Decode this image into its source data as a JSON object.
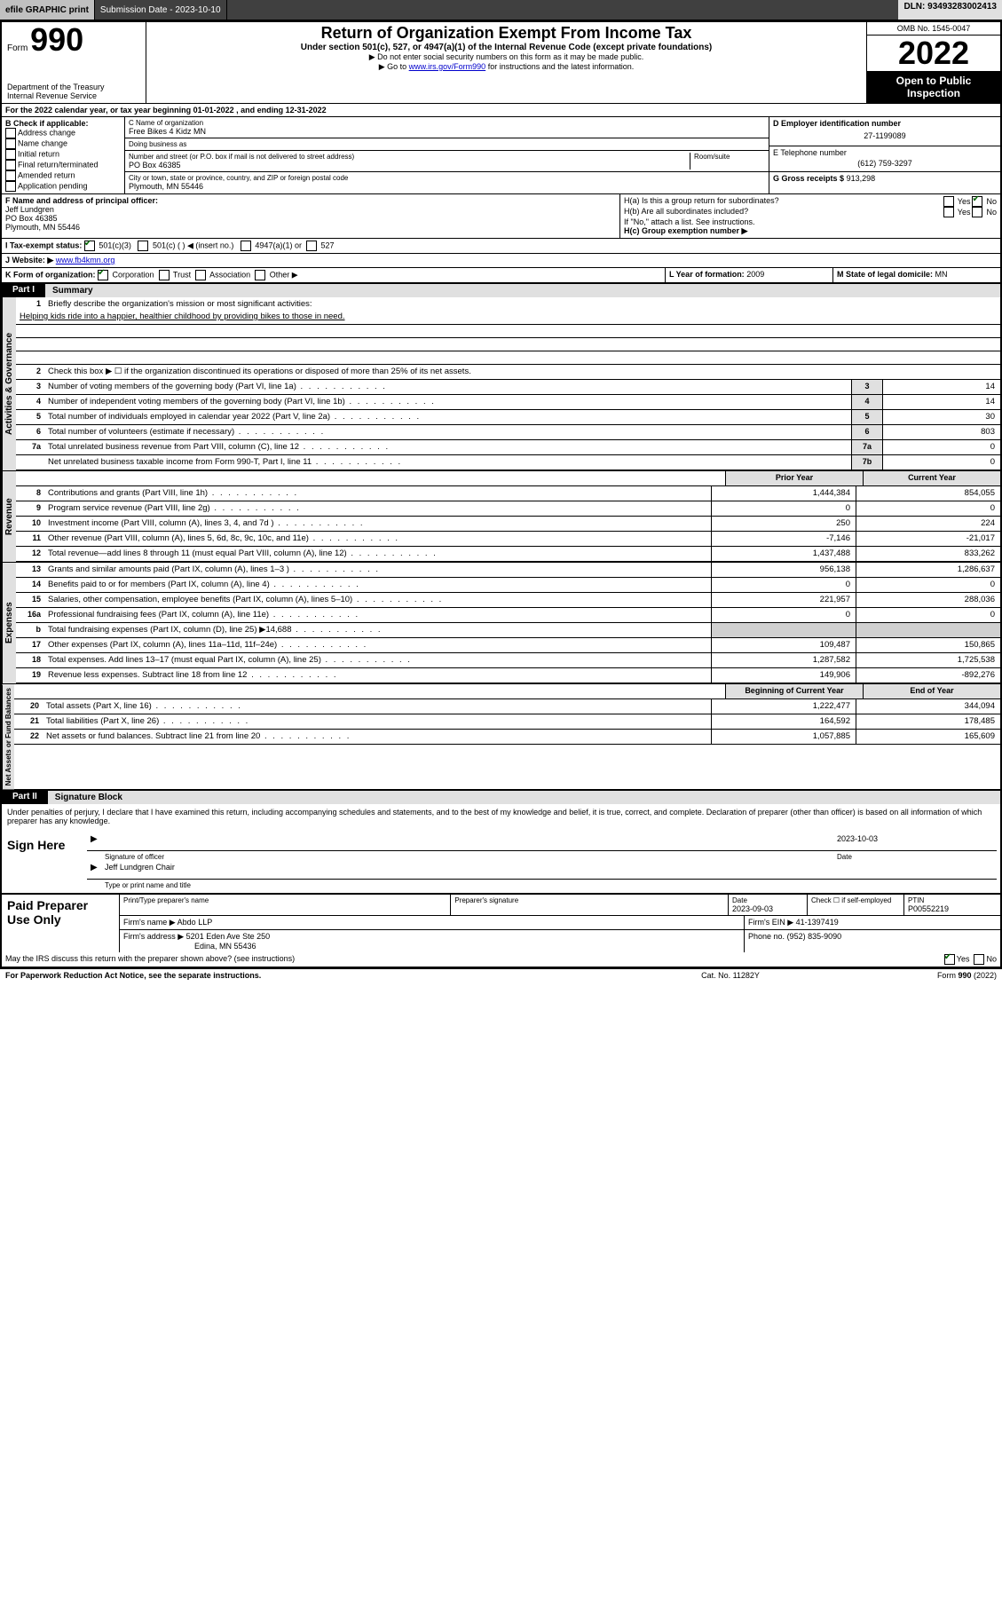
{
  "topbar": {
    "efile": "efile GRAPHIC print",
    "submission_label": "Submission Date - 2023-10-10",
    "dln_label": "DLN: 93493283002413"
  },
  "header": {
    "form_label": "Form",
    "form_number": "990",
    "title": "Return of Organization Exempt From Income Tax",
    "subtitle": "Under section 501(c), 527, or 4947(a)(1) of the Internal Revenue Code (except private foundations)",
    "note1": "▶ Do not enter social security numbers on this form as it may be made public.",
    "note2_pre": "▶ Go to ",
    "note2_link": "www.irs.gov/Form990",
    "note2_post": " for instructions and the latest information.",
    "dept": "Department of the Treasury",
    "irs": "Internal Revenue Service",
    "omb": "OMB No. 1545-0047",
    "year": "2022",
    "public1": "Open to Public",
    "public2": "Inspection"
  },
  "line_a": "For the 2022 calendar year, or tax year beginning 01-01-2022   , and ending 12-31-2022",
  "block_b": {
    "label": "B Check if applicable:",
    "items": [
      "Address change",
      "Name change",
      "Initial return",
      "Final return/terminated",
      "Amended return",
      "Application pending"
    ]
  },
  "block_c": {
    "name_label": "C Name of organization",
    "name": "Free Bikes 4 Kidz MN",
    "dba_label": "Doing business as",
    "dba": "",
    "street_label": "Number and street (or P.O. box if mail is not delivered to street address)",
    "room_label": "Room/suite",
    "street": "PO Box 46385",
    "city_label": "City or town, state or province, country, and ZIP or foreign postal code",
    "city": "Plymouth, MN  55446"
  },
  "block_d": {
    "ein_label": "D Employer identification number",
    "ein": "27-1199089",
    "phone_label": "E Telephone number",
    "phone": "(612) 759-3297",
    "gross_label": "G Gross receipts $",
    "gross": "913,298"
  },
  "block_f": {
    "label": "F  Name and address of principal officer:",
    "name": "Jeff Lundgren",
    "addr1": "PO Box 46385",
    "addr2": "Plymouth, MN  55446"
  },
  "block_h": {
    "ha_label": "H(a)  Is this a group return for subordinates?",
    "hb_label": "H(b)  Are all subordinates included?",
    "hb_note": "If \"No,\" attach a list. See instructions.",
    "hc_label": "H(c)  Group exemption number ▶",
    "yes": "Yes",
    "no": "No"
  },
  "line_i": {
    "label": "I     Tax-exempt status:",
    "c3": "501(c)(3)",
    "c_other": "501(c) (  ) ◀ (insert no.)",
    "a947": "4947(a)(1) or",
    "s527": "527"
  },
  "line_j": {
    "label": "J    Website: ▶",
    "url": "www.fb4kmn.org"
  },
  "line_k": {
    "label": "K Form of organization:",
    "corp": "Corporation",
    "trust": "Trust",
    "assoc": "Association",
    "other": "Other ▶"
  },
  "line_l": {
    "label": "L Year of formation:",
    "val": "2009"
  },
  "line_m": {
    "label": "M State of legal domicile:",
    "val": "MN"
  },
  "part1": {
    "tab": "Part I",
    "title": "Summary"
  },
  "summary": {
    "line1_label": "Briefly describe the organization's mission or most significant activities:",
    "line1_text": "Helping kids ride into a happier, healthier childhood by providing bikes to those in need.",
    "line2": "Check this box ▶ ☐  if the organization discontinued its operations or disposed of more than 25% of its net assets.",
    "rows_single": [
      {
        "n": "3",
        "t": "Number of voting members of the governing body (Part VI, line 1a)",
        "box": "3",
        "v": "14"
      },
      {
        "n": "4",
        "t": "Number of independent voting members of the governing body (Part VI, line 1b)",
        "box": "4",
        "v": "14"
      },
      {
        "n": "5",
        "t": "Total number of individuals employed in calendar year 2022 (Part V, line 2a)",
        "box": "5",
        "v": "30"
      },
      {
        "n": "6",
        "t": "Total number of volunteers (estimate if necessary)",
        "box": "6",
        "v": "803"
      },
      {
        "n": "7a",
        "t": "Total unrelated business revenue from Part VIII, column (C), line 12",
        "box": "7a",
        "v": "0"
      },
      {
        "n": "",
        "t": "Net unrelated business taxable income from Form 990-T, Part I, line 11",
        "box": "7b",
        "v": "0"
      }
    ],
    "col_prior": "Prior Year",
    "col_current": "Current Year",
    "revenue": [
      {
        "n": "8",
        "t": "Contributions and grants (Part VIII, line 1h)",
        "p": "1,444,384",
        "c": "854,055"
      },
      {
        "n": "9",
        "t": "Program service revenue (Part VIII, line 2g)",
        "p": "0",
        "c": "0"
      },
      {
        "n": "10",
        "t": "Investment income (Part VIII, column (A), lines 3, 4, and 7d )",
        "p": "250",
        "c": "224"
      },
      {
        "n": "11",
        "t": "Other revenue (Part VIII, column (A), lines 5, 6d, 8c, 9c, 10c, and 11e)",
        "p": "-7,146",
        "c": "-21,017"
      },
      {
        "n": "12",
        "t": "Total revenue—add lines 8 through 11 (must equal Part VIII, column (A), line 12)",
        "p": "1,437,488",
        "c": "833,262"
      }
    ],
    "expenses": [
      {
        "n": "13",
        "t": "Grants and similar amounts paid (Part IX, column (A), lines 1–3 )",
        "p": "956,138",
        "c": "1,286,637"
      },
      {
        "n": "14",
        "t": "Benefits paid to or for members (Part IX, column (A), line 4)",
        "p": "0",
        "c": "0"
      },
      {
        "n": "15",
        "t": "Salaries, other compensation, employee benefits (Part IX, column (A), lines 5–10)",
        "p": "221,957",
        "c": "288,036"
      },
      {
        "n": "16a",
        "t": "Professional fundraising fees (Part IX, column (A), line 11e)",
        "p": "0",
        "c": "0"
      },
      {
        "n": "b",
        "t": "Total fundraising expenses (Part IX, column (D), line 25) ▶14,688",
        "p": "",
        "c": "",
        "shade": true
      },
      {
        "n": "17",
        "t": "Other expenses (Part IX, column (A), lines 11a–11d, 11f–24e)",
        "p": "109,487",
        "c": "150,865"
      },
      {
        "n": "18",
        "t": "Total expenses. Add lines 13–17 (must equal Part IX, column (A), line 25)",
        "p": "1,287,582",
        "c": "1,725,538"
      },
      {
        "n": "19",
        "t": "Revenue less expenses. Subtract line 18 from line 12",
        "p": "149,906",
        "c": "-892,276"
      }
    ],
    "col_begin": "Beginning of Current Year",
    "col_end": "End of Year",
    "balances": [
      {
        "n": "20",
        "t": "Total assets (Part X, line 16)",
        "p": "1,222,477",
        "c": "344,094"
      },
      {
        "n": "21",
        "t": "Total liabilities (Part X, line 26)",
        "p": "164,592",
        "c": "178,485"
      },
      {
        "n": "22",
        "t": "Net assets or fund balances. Subtract line 21 from line 20",
        "p": "1,057,885",
        "c": "165,609"
      }
    ],
    "side_gov": "Activities & Governance",
    "side_rev": "Revenue",
    "side_exp": "Expenses",
    "side_bal": "Net Assets or Fund Balances"
  },
  "part2": {
    "tab": "Part II",
    "title": "Signature Block"
  },
  "sig": {
    "penalty": "Under penalties of perjury, I declare that I have examined this return, including accompanying schedules and statements, and to the best of my knowledge and belief, it is true, correct, and complete. Declaration of preparer (other than officer) is based on all information of which preparer has any knowledge.",
    "sign_here": "Sign Here",
    "sig_officer": "Signature of officer",
    "date_label": "Date",
    "sig_date": "2023-10-03",
    "name_title": "Jeff Lundgren Chair",
    "name_caption": "Type or print name and title"
  },
  "preparer": {
    "label": "Paid Preparer Use Only",
    "print_name_h": "Print/Type preparer's name",
    "sig_h": "Preparer's signature",
    "date_h": "Date",
    "date": "2023-09-03",
    "check_h": "Check ☐ if self-employed",
    "ptin_h": "PTIN",
    "ptin": "P00552219",
    "firm_name_l": "Firm's name    ▶",
    "firm_name": "Abdo LLP",
    "firm_ein_l": "Firm's EIN ▶",
    "firm_ein": "41-1397419",
    "firm_addr_l": "Firm's address ▶",
    "firm_addr1": "5201 Eden Ave Ste 250",
    "firm_addr2": "Edina, MN  55436",
    "phone_l": "Phone no.",
    "phone": "(952) 835-9090",
    "discuss": "May the IRS discuss this return with the preparer shown above? (see instructions)"
  },
  "footer": {
    "left": "For Paperwork Reduction Act Notice, see the separate instructions.",
    "mid": "Cat. No. 11282Y",
    "right": "Form 990 (2022)"
  }
}
